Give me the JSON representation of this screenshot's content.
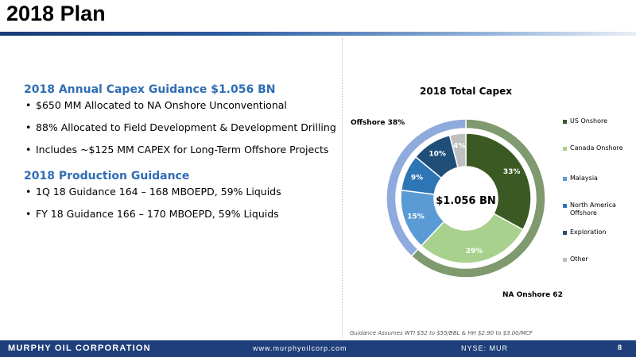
{
  "slide": {
    "title": "2018 Plan"
  },
  "capex": {
    "heading": "2018 Annual Capex Guidance $1.056 BN",
    "bullets": [
      "$650 MM Allocated to NA Onshore Unconventional",
      "88% Allocated to Field Development & Development Drilling",
      "Includes ~$125 MM CAPEX for Long-Term Offshore Projects"
    ]
  },
  "production": {
    "heading": "2018 Production Guidance",
    "bullets": [
      "1Q 18 Guidance 164 – 168 MBOEPD, 59% Liquids",
      "FY 18 Guidance 166 – 170 MBOEPD, 59% Liquids"
    ]
  },
  "chart_data": {
    "type": "pie",
    "subtype": "donut",
    "title": "2018 Total Capex",
    "center_label": "$1.056 BN",
    "legend_position": "right",
    "categories": [
      "US Onshore",
      "Canada Onshore",
      "Malaysia",
      "North America Offshore",
      "Exploration",
      "Other"
    ],
    "values": [
      33,
      29,
      15,
      9,
      10,
      4
    ],
    "value_labels": [
      "33%",
      "29%",
      "15%",
      "9%",
      "10%",
      "4%"
    ],
    "colors": [
      "#3b5a23",
      "#a9d18e",
      "#5b9bd5",
      "#2e75b6",
      "#1f4e79",
      "#bfbfbf"
    ],
    "outer_ring": {
      "labels": [
        "NA Onshore 62%",
        "Offshore 38%"
      ],
      "values": [
        62,
        38
      ],
      "colors": [
        "#7f9a6e",
        "#8faadc"
      ]
    }
  },
  "footnote": "Guidance Assumes WTI $52 to $55/BBL & HH $2.90 to $3.00/MCF",
  "footer": {
    "company": "MURPHY OIL CORPORATION",
    "website": "www.murphyoilcorp.com",
    "ticker": "NYSE: MUR",
    "page_number": "8"
  }
}
